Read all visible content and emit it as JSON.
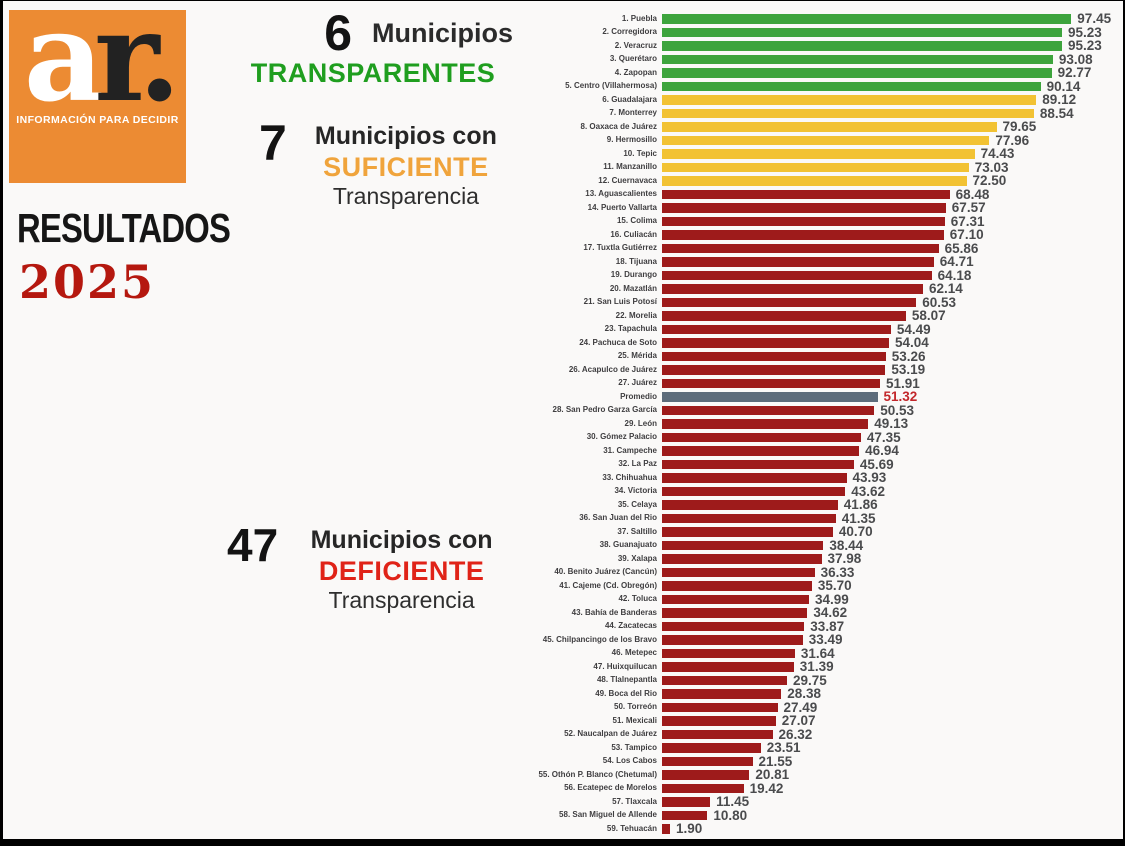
{
  "logo": {
    "letter_a": "a",
    "letter_r": "r.",
    "tagline": "INFORMACIÓN PARA DECIDIR",
    "bg_color": "#ec8b33"
  },
  "titles": {
    "resultados": "RESULTADOS",
    "year": "2025",
    "year_color": "#b5180f"
  },
  "annotations": [
    {
      "count": "6",
      "line1": "Municipios",
      "keyword": "TRANSPARENTES",
      "keyword_color": "#1f9e1f",
      "line3": ""
    },
    {
      "count": "7",
      "line1": "Municipios con",
      "keyword": "SUFICIENTE",
      "keyword_color": "#f0a43c",
      "line3": "Transparencia"
    },
    {
      "count": "47",
      "line1": "Municipios con",
      "keyword": "DEFICIENTE",
      "keyword_color": "#e02318",
      "line3": "Transparencia"
    }
  ],
  "chart_data": {
    "type": "bar",
    "orientation": "horizontal",
    "xlim": [
      0,
      100
    ],
    "grid": false,
    "legend": false,
    "colors": {
      "transparente": "#3da43d",
      "suficiente": "#f2c233",
      "deficiente": "#9e1b1b",
      "promedio": "#5d6c7b",
      "promedio_value": "#c3272b",
      "value_label": "#4a4b4d"
    },
    "groups": [
      {
        "label": "Municipios TRANSPARENTES",
        "count": 6
      },
      {
        "label": "Municipios con SUFICIENTE Transparencia",
        "count": 7
      },
      {
        "label": "Municipios con DEFICIENTE Transparencia",
        "count": 47
      }
    ],
    "bars": [
      {
        "label": "1. Puebla",
        "value": 97.45,
        "category": "transparente"
      },
      {
        "label": "2. Corregidora",
        "value": 95.23,
        "category": "transparente"
      },
      {
        "label": "2. Veracruz",
        "value": 95.23,
        "category": "transparente"
      },
      {
        "label": "3. Querétaro",
        "value": 93.08,
        "category": "transparente"
      },
      {
        "label": "4. Zapopan",
        "value": 92.77,
        "category": "transparente"
      },
      {
        "label": "5. Centro (Villahermosa)",
        "value": 90.14,
        "category": "transparente"
      },
      {
        "label": "6. Guadalajara",
        "value": 89.12,
        "category": "suficiente"
      },
      {
        "label": "7. Monterrey",
        "value": 88.54,
        "category": "suficiente"
      },
      {
        "label": "8. Oaxaca de Juárez",
        "value": 79.65,
        "category": "suficiente"
      },
      {
        "label": "9. Hermosillo",
        "value": 77.96,
        "category": "suficiente"
      },
      {
        "label": "10. Tepic",
        "value": 74.43,
        "category": "suficiente"
      },
      {
        "label": "11. Manzanillo",
        "value": 73.03,
        "category": "suficiente"
      },
      {
        "label": "12. Cuernavaca",
        "value": 72.5,
        "category": "suficiente"
      },
      {
        "label": "13. Aguascalientes",
        "value": 68.48,
        "category": "deficiente"
      },
      {
        "label": "14. Puerto Vallarta",
        "value": 67.57,
        "category": "deficiente"
      },
      {
        "label": "15. Colima",
        "value": 67.31,
        "category": "deficiente"
      },
      {
        "label": "16. Culiacán",
        "value": 67.1,
        "category": "deficiente"
      },
      {
        "label": "17. Tuxtla Gutiérrez",
        "value": 65.86,
        "category": "deficiente"
      },
      {
        "label": "18. Tijuana",
        "value": 64.71,
        "category": "deficiente"
      },
      {
        "label": "19. Durango",
        "value": 64.18,
        "category": "deficiente"
      },
      {
        "label": "20. Mazatlán",
        "value": 62.14,
        "category": "deficiente"
      },
      {
        "label": "21. San Luis Potosí",
        "value": 60.53,
        "category": "deficiente"
      },
      {
        "label": "22. Morelia",
        "value": 58.07,
        "category": "deficiente"
      },
      {
        "label": "23. Tapachula",
        "value": 54.49,
        "category": "deficiente"
      },
      {
        "label": "24. Pachuca de Soto",
        "value": 54.04,
        "category": "deficiente"
      },
      {
        "label": "25. Mérida",
        "value": 53.26,
        "category": "deficiente"
      },
      {
        "label": "26. Acapulco de Juárez",
        "value": 53.19,
        "category": "deficiente"
      },
      {
        "label": "27. Juárez",
        "value": 51.91,
        "category": "deficiente"
      },
      {
        "label": "Promedio",
        "value": 51.32,
        "category": "promedio"
      },
      {
        "label": "28. San Pedro Garza García",
        "value": 50.53,
        "category": "deficiente"
      },
      {
        "label": "29. León",
        "value": 49.13,
        "category": "deficiente"
      },
      {
        "label": "30. Gómez Palacio",
        "value": 47.35,
        "category": "deficiente"
      },
      {
        "label": "31. Campeche",
        "value": 46.94,
        "category": "deficiente"
      },
      {
        "label": "32. La Paz",
        "value": 45.69,
        "category": "deficiente"
      },
      {
        "label": "33. Chihuahua",
        "value": 43.93,
        "category": "deficiente"
      },
      {
        "label": "34. Victoria",
        "value": 43.62,
        "category": "deficiente"
      },
      {
        "label": "35. Celaya",
        "value": 41.86,
        "category": "deficiente"
      },
      {
        "label": "36. San Juan del Rio",
        "value": 41.35,
        "category": "deficiente"
      },
      {
        "label": "37. Saltillo",
        "value": 40.7,
        "category": "deficiente"
      },
      {
        "label": "38. Guanajuato",
        "value": 38.44,
        "category": "deficiente"
      },
      {
        "label": "39. Xalapa",
        "value": 37.98,
        "category": "deficiente"
      },
      {
        "label": "40. Benito Juárez (Cancún)",
        "value": 36.33,
        "category": "deficiente"
      },
      {
        "label": "41. Cajeme (Cd. Obregón)",
        "value": 35.7,
        "category": "deficiente"
      },
      {
        "label": "42. Toluca",
        "value": 34.99,
        "category": "deficiente"
      },
      {
        "label": "43. Bahía de Banderas",
        "value": 34.62,
        "category": "deficiente"
      },
      {
        "label": "44. Zacatecas",
        "value": 33.87,
        "category": "deficiente"
      },
      {
        "label": "45. Chilpancingo de los Bravo",
        "value": 33.49,
        "category": "deficiente"
      },
      {
        "label": "46. Metepec",
        "value": 31.64,
        "category": "deficiente"
      },
      {
        "label": "47. Huixquilucan",
        "value": 31.39,
        "category": "deficiente"
      },
      {
        "label": "48. Tlalnepantla",
        "value": 29.75,
        "category": "deficiente"
      },
      {
        "label": "49. Boca del Rio",
        "value": 28.38,
        "category": "deficiente"
      },
      {
        "label": "50. Torreón",
        "value": 27.49,
        "category": "deficiente"
      },
      {
        "label": "51. Mexicali",
        "value": 27.07,
        "category": "deficiente"
      },
      {
        "label": "52. Naucalpan de Juárez",
        "value": 26.32,
        "category": "deficiente"
      },
      {
        "label": "53. Tampico",
        "value": 23.51,
        "category": "deficiente"
      },
      {
        "label": "54. Los Cabos",
        "value": 21.55,
        "category": "deficiente"
      },
      {
        "label": "55. Othón P. Blanco (Chetumal)",
        "value": 20.81,
        "category": "deficiente"
      },
      {
        "label": "56. Ecatepec de Morelos",
        "value": 19.42,
        "category": "deficiente"
      },
      {
        "label": "57. Tlaxcala",
        "value": 11.45,
        "category": "deficiente"
      },
      {
        "label": "58. San Miguel de Allende",
        "value": 10.8,
        "category": "deficiente"
      },
      {
        "label": "59. Tehuacán",
        "value": 1.9,
        "category": "deficiente"
      }
    ]
  }
}
